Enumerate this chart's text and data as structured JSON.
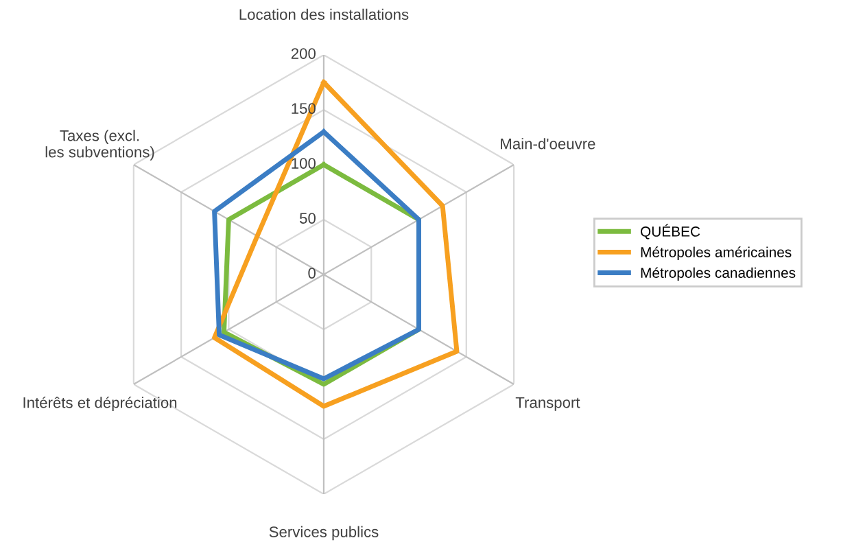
{
  "chart_data": {
    "type": "radar",
    "categories": [
      "Location des installations",
      "Main-d'oeuvre",
      "Transport",
      "Services publics",
      "Intérêts et dépréciation",
      "Taxes (excl.\nles subventions)"
    ],
    "series": [
      {
        "name": "QUÉBEC",
        "color": "#7cbb3f",
        "values": [
          100,
          100,
          100,
          100,
          105,
          100
        ]
      },
      {
        "name": "Métropoles américaines",
        "color": "#f7a020",
        "values": [
          175,
          125,
          140,
          120,
          115,
          70
        ]
      },
      {
        "name": "Métropoles canadiennes",
        "color": "#3b7dc4",
        "values": [
          130,
          100,
          100,
          95,
          110,
          115
        ]
      }
    ],
    "ylim": [
      0,
      200
    ],
    "yticks": [
      0,
      50,
      100,
      150,
      200
    ],
    "grid": true,
    "legend": "right",
    "marker": "none"
  }
}
